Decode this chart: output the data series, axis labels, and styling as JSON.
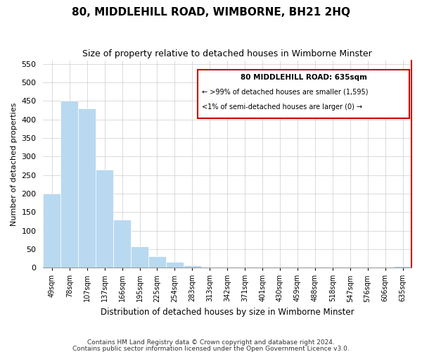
{
  "title": "80, MIDDLEHILL ROAD, WIMBORNE, BH21 2HQ",
  "subtitle": "Size of property relative to detached houses in Wimborne Minster",
  "xlabel": "Distribution of detached houses by size in Wimborne Minster",
  "ylabel": "Number of detached properties",
  "categories": [
    "49sqm",
    "78sqm",
    "107sqm",
    "137sqm",
    "166sqm",
    "195sqm",
    "225sqm",
    "254sqm",
    "283sqm",
    "313sqm",
    "342sqm",
    "371sqm",
    "401sqm",
    "430sqm",
    "459sqm",
    "488sqm",
    "518sqm",
    "547sqm",
    "576sqm",
    "606sqm",
    "635sqm"
  ],
  "values": [
    200,
    450,
    430,
    265,
    130,
    58,
    30,
    15,
    6,
    1,
    1,
    1,
    1,
    1,
    1,
    1,
    1,
    1,
    1,
    1,
    5
  ],
  "highlight_index": 20,
  "bar_color_normal": "#b8d9f0",
  "bar_color_highlight": "#b8d9f0",
  "legend_box_color": "#cc0000",
  "legend_title": "80 MIDDLEHILL ROAD: 635sqm",
  "legend_line1": "← >99% of detached houses are smaller (1,595)",
  "legend_line2": "<1% of semi-detached houses are larger (0) →",
  "footnote1": "Contains HM Land Registry data © Crown copyright and database right 2024.",
  "footnote2": "Contains public sector information licensed under the Open Government Licence v3.0.",
  "ylim": [
    0,
    560
  ],
  "yticks": [
    0,
    50,
    100,
    150,
    200,
    250,
    300,
    350,
    400,
    450,
    500,
    550
  ]
}
